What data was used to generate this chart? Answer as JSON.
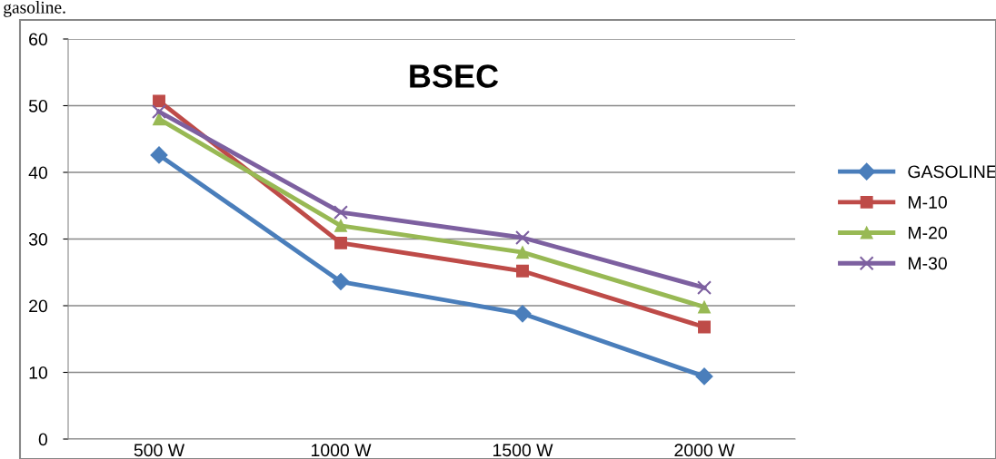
{
  "chart_data": {
    "type": "line",
    "title": "BSEC",
    "annotations": [
      "gasoline."
    ],
    "categories": [
      "500 W",
      "1000 W",
      "1500 W",
      "2000 W"
    ],
    "series": [
      {
        "name": "GASOLINE",
        "color": "#4a7ebb",
        "marker": "diamond",
        "values": [
          42.6,
          23.6,
          18.8,
          9.4
        ]
      },
      {
        "name": "M-10",
        "color": "#be4b48",
        "marker": "square",
        "values": [
          50.7,
          29.4,
          25.2,
          16.8
        ]
      },
      {
        "name": "M-20",
        "color": "#98b954",
        "marker": "triangle",
        "values": [
          48.0,
          32.0,
          28.0,
          19.8
        ]
      },
      {
        "name": "M-30",
        "color": "#7d60a0",
        "marker": "cross",
        "values": [
          49.1,
          34.0,
          30.2,
          22.7
        ]
      }
    ],
    "ylim": [
      0,
      60
    ],
    "yticks": [
      0,
      10,
      20,
      30,
      40,
      50,
      60
    ],
    "grid": "y",
    "legend": "right",
    "line_style": "solid"
  }
}
